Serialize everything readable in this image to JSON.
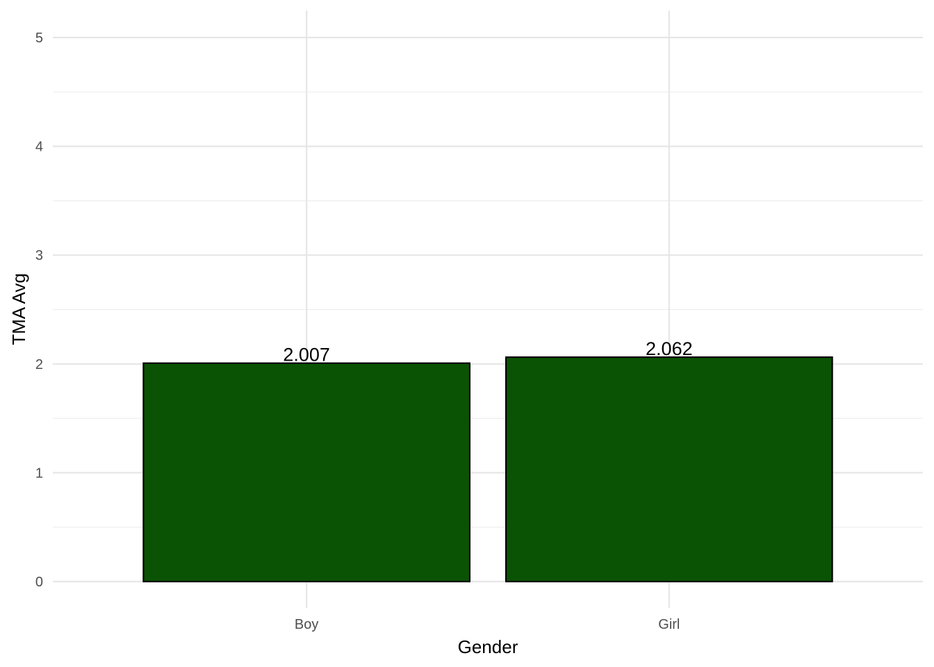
{
  "chart_data": {
    "type": "bar",
    "categories": [
      "Boy",
      "Girl"
    ],
    "values": [
      2.007,
      2.062
    ],
    "data_labels": [
      "2.007",
      "2.062"
    ],
    "title": "",
    "xlabel": "Gender",
    "ylabel": "TMA Avg",
    "ylim": [
      0,
      5
    ],
    "yticks": [
      0,
      1,
      2,
      3,
      4,
      5
    ],
    "ytick_labels": [
      "0",
      "1",
      "2",
      "3",
      "4",
      "5"
    ],
    "grid": true,
    "legend": "none",
    "bar_color": "#0b5304",
    "bar_outline_color": "#000000"
  }
}
